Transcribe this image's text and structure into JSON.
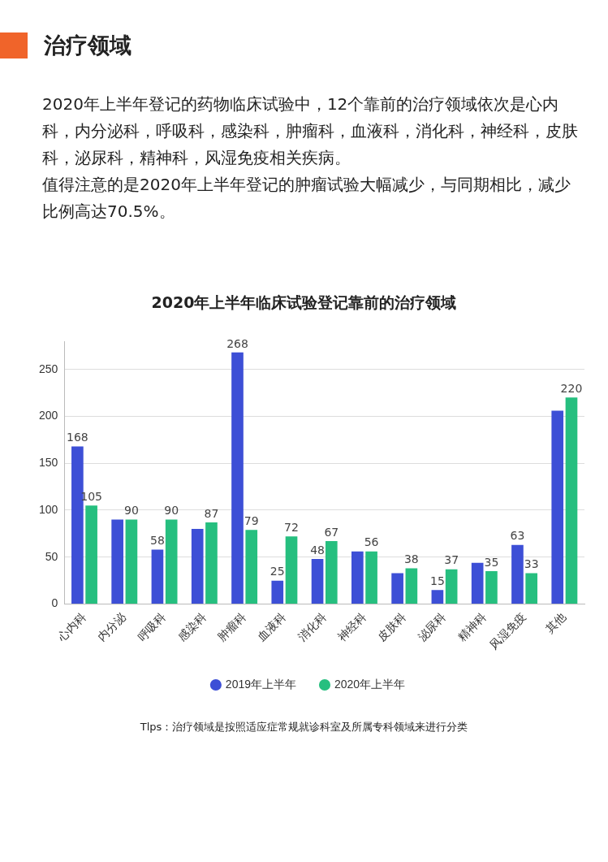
{
  "chart_data": {
    "type": "bar",
    "title": "2020年上半年临床试验登记靠前的治疗领域",
    "annotations": [
      "治疗领域",
      "2020年上半年登记的药物临床试验中，12个靠前的治疗领域依次是心内科，内分泌科，呼吸科，感染科，肿瘤科，血液科，消化科，神经科，皮肤科，泌尿科，精神科，风湿免疫相关疾病。",
      "值得注意的是2020年上半年登记的肿瘤试验大幅减少，与同期相比，减少比例高达70.5%。",
      "Tlps：治疗领域是按照适应症常规就诊科室及所属专科领域来进行分类"
    ],
    "categories": [
      "心内科",
      "内分泌",
      "呼吸科",
      "感染科",
      "肿瘤科",
      "血液科",
      "消化科",
      "神经科",
      "皮肤科",
      "泌尿科",
      "精神科",
      "风湿免疫",
      "其他"
    ],
    "series": [
      {
        "name": "2019年上半年",
        "color": "#3d4fd6",
        "values": [
          168,
          90,
          58,
          80,
          268,
          25,
          48,
          56,
          33,
          15,
          44,
          63,
          206
        ],
        "value_labels": [
          "168",
          null,
          "58",
          null,
          "268",
          "25",
          "48",
          null,
          null,
          "15",
          null,
          "63",
          null
        ]
      },
      {
        "name": "2020年上半年",
        "color": "#26bf7f",
        "values": [
          105,
          90,
          90,
          87,
          79,
          72,
          67,
          56,
          38,
          37,
          35,
          33,
          220
        ],
        "value_labels": [
          "105",
          "90",
          "90",
          "87",
          "79",
          "72",
          "67",
          "56",
          "38",
          "37",
          "35",
          "33",
          "220"
        ]
      }
    ],
    "ylim": [
      0,
      280
    ],
    "yticks": [
      0,
      50,
      100,
      150,
      200,
      250
    ],
    "grid": "y",
    "legend": "bottom"
  }
}
